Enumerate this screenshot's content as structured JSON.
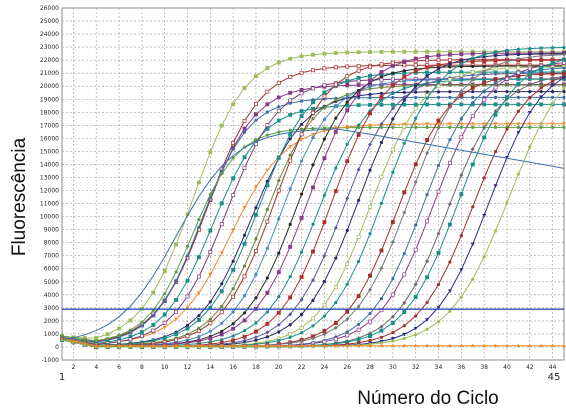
{
  "chart_data": {
    "type": "line",
    "title": "",
    "xlabel": "Número do Ciclo",
    "ylabel": "Fluorescência",
    "xlim": [
      1,
      45
    ],
    "ylim": [
      -1000,
      26000
    ],
    "x_ticks": [
      2,
      4,
      6,
      8,
      10,
      12,
      14,
      16,
      18,
      20,
      22,
      24,
      26,
      28,
      30,
      32,
      34,
      36,
      38,
      40,
      42,
      44
    ],
    "x_end_labels": [
      "1",
      "45"
    ],
    "y_ticks": [
      -1000,
      0,
      1000,
      2000,
      3000,
      4000,
      5000,
      6000,
      7000,
      8000,
      9000,
      10000,
      11000,
      12000,
      13000,
      14000,
      15000,
      16000,
      17000,
      18000,
      19000,
      20000,
      21000,
      22000,
      23000,
      24000,
      25000,
      26000
    ],
    "grid": true,
    "legend": "none",
    "threshold": {
      "value": 2900,
      "color": "#2f50b4"
    },
    "cycles": [
      1,
      2,
      3,
      4,
      5,
      6,
      7,
      8,
      9,
      10,
      11,
      12,
      13,
      14,
      15,
      16,
      17,
      18,
      19,
      20,
      21,
      22,
      23,
      24,
      25,
      26,
      27,
      28,
      29,
      30,
      31,
      32,
      33,
      34,
      35,
      36,
      37,
      38,
      39,
      40,
      41,
      42,
      43,
      44,
      45
    ],
    "curve_model": "logistic: y = base + plateau / (1 + exp(-(x - midpoint) / slope))",
    "series": [
      {
        "color": "#9fbd5a",
        "marker": "square",
        "plateau": 22500,
        "midpoint": 12.5,
        "slope": 2.3,
        "base": 300
      },
      {
        "color": "#8a3a8a",
        "marker": "square",
        "plateau": 20000,
        "midpoint": 13.5,
        "slope": 2.2,
        "base": 200
      },
      {
        "color": "#a0302a",
        "marker": "square-open",
        "plateau": 21500,
        "midpoint": 13.8,
        "slope": 2.3,
        "base": 200
      },
      {
        "color": "#3a6fa8",
        "marker": "circle",
        "plateau": 19000,
        "midpoint": 13.2,
        "slope": 2.1,
        "base": 200
      },
      {
        "color": "#1a8f8a",
        "marker": "square",
        "plateau": 18500,
        "midpoint": 14.2,
        "slope": 2.2,
        "base": 150
      },
      {
        "color": "#5aa04a",
        "marker": "circle",
        "plateau": 16600,
        "midpoint": 12.4,
        "slope": 2.0,
        "base": 300
      },
      {
        "color": "#f08a2a",
        "marker": "triangle-down",
        "plateau": 17000,
        "midpoint": 15.8,
        "slope": 2.4,
        "base": 150
      },
      {
        "color": "#7a3a7a",
        "marker": "square-open",
        "plateau": 20500,
        "midpoint": 15.4,
        "slope": 2.3,
        "base": 100
      },
      {
        "color": "#2a2a6a",
        "marker": "circle",
        "plateau": 19500,
        "midpoint": 17.6,
        "slope": 2.3,
        "base": 100
      },
      {
        "color": "#1a8f8a",
        "marker": "square",
        "plateau": 21000,
        "midpoint": 18.2,
        "slope": 2.3,
        "base": 100
      },
      {
        "color": "#6a8a3a",
        "marker": "circle",
        "plateau": 20000,
        "midpoint": 18.8,
        "slope": 2.2,
        "base": 100
      },
      {
        "color": "#a0302a",
        "marker": "square-open",
        "plateau": 22000,
        "midpoint": 19.6,
        "slope": 2.3,
        "base": 50
      },
      {
        "color": "#4a8ac0",
        "marker": "circle",
        "plateau": 20500,
        "midpoint": 20.2,
        "slope": 2.2,
        "base": 50
      },
      {
        "color": "#2a2a2a",
        "marker": "circle",
        "plateau": 21500,
        "midpoint": 21.6,
        "slope": 2.3,
        "base": 50
      },
      {
        "color": "#8a3a8a",
        "marker": "square",
        "plateau": 22500,
        "midpoint": 22.6,
        "slope": 2.4,
        "base": 50
      },
      {
        "color": "#1a8f8a",
        "marker": "circle",
        "plateau": 20500,
        "midpoint": 23.4,
        "slope": 2.3,
        "base": 50
      },
      {
        "color": "#b03030",
        "marker": "square",
        "plateau": 22000,
        "midpoint": 24.6,
        "slope": 2.3,
        "base": 0
      },
      {
        "color": "#5a5a9a",
        "marker": "diamond",
        "plateau": 21000,
        "midpoint": 25.6,
        "slope": 2.3,
        "base": 0
      },
      {
        "color": "#2a2a6a",
        "marker": "circle",
        "plateau": 22500,
        "midpoint": 27.0,
        "slope": 2.4,
        "base": 0
      },
      {
        "color": "#9fbd5a",
        "marker": "square-open",
        "plateau": 21500,
        "midpoint": 28.0,
        "slope": 2.3,
        "base": 0
      },
      {
        "color": "#1a8f8a",
        "marker": "circle",
        "plateau": 23000,
        "midpoint": 29.2,
        "slope": 2.4,
        "base": 0
      },
      {
        "color": "#a0302a",
        "marker": "square",
        "plateau": 21000,
        "midpoint": 30.4,
        "slope": 2.3,
        "base": 0
      },
      {
        "color": "#7a7a7a",
        "marker": "diamond",
        "plateau": 22500,
        "midpoint": 31.4,
        "slope": 2.4,
        "base": 0
      },
      {
        "color": "#3a6fa8",
        "marker": "circle",
        "plateau": 21500,
        "midpoint": 32.6,
        "slope": 2.3,
        "base": 0
      },
      {
        "color": "#8a3a8a",
        "marker": "square-open",
        "plateau": 22000,
        "midpoint": 33.6,
        "slope": 2.4,
        "base": 0
      },
      {
        "color": "#6a6a6a",
        "marker": "diamond",
        "plateau": 21000,
        "midpoint": 34.8,
        "slope": 2.3,
        "base": 0
      },
      {
        "color": "#1a8f8a",
        "marker": "square",
        "plateau": 22500,
        "midpoint": 35.8,
        "slope": 2.4,
        "base": 0
      },
      {
        "color": "#a0302a",
        "marker": "circle",
        "plateau": 21500,
        "midpoint": 37.0,
        "slope": 2.4,
        "base": 0
      },
      {
        "color": "#2a2a8a",
        "marker": "triangle-down",
        "plateau": 22000,
        "midpoint": 38.4,
        "slope": 2.4,
        "base": 0
      },
      {
        "color": "#9fbd5a",
        "marker": "circle",
        "plateau": 23000,
        "midpoint": 40.2,
        "slope": 2.6,
        "base": 0
      },
      {
        "color": "#f08a2a",
        "marker": "triangle-up",
        "plateau": 0,
        "midpoint": 30,
        "slope": 2,
        "base": 100
      },
      {
        "color": "#3a6fa8",
        "marker": "none",
        "plateau": 0,
        "midpoint": 30,
        "slope": 2,
        "base": 2900,
        "declining_from": 16600,
        "decline_to": 13500,
        "decline_start": 25
      }
    ]
  }
}
